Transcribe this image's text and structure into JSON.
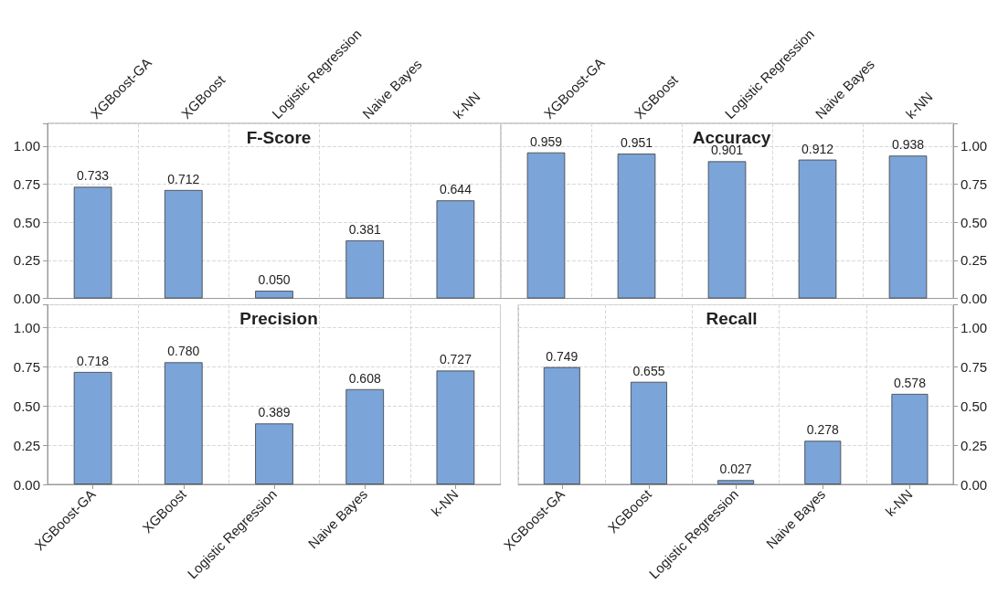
{
  "chart_data": [
    {
      "type": "bar",
      "title": "F-Score",
      "categories": [
        "XGBoost-GA",
        "XGBoost",
        "Logistic Regression",
        "Naive Bayes",
        "k-NN"
      ],
      "values": [
        0.733,
        0.712,
        0.05,
        0.381,
        0.644
      ],
      "value_labels": [
        "0.733",
        "0.712",
        "0.050",
        "0.381",
        "0.644"
      ],
      "color": "#7ba4d9",
      "ylim": [
        0,
        1.15
      ],
      "yticks": [
        {
          "value": 0,
          "label": "0.00"
        },
        {
          "value": 0.25,
          "label": "0.25"
        },
        {
          "value": 0.5,
          "label": "0.50"
        },
        {
          "value": 0.75,
          "label": "0.75"
        },
        {
          "value": 1,
          "label": "1.00"
        }
      ],
      "grid": true
    },
    {
      "type": "bar",
      "title": "Accuracy",
      "categories": [
        "XGBoost-GA",
        "XGBoost",
        "Logistic Regression",
        "Naive Bayes",
        "k-NN"
      ],
      "values": [
        0.959,
        0.951,
        0.901,
        0.912,
        0.938
      ],
      "value_labels": [
        "0.959",
        "0.951",
        "0.901",
        "0.912",
        "0.938"
      ],
      "color": "#7ba4d9",
      "ylim": [
        0,
        1.15
      ],
      "yticks": [
        {
          "value": 0,
          "label": "0.00"
        },
        {
          "value": 0.25,
          "label": "0.25"
        },
        {
          "value": 0.5,
          "label": "0.50"
        },
        {
          "value": 0.75,
          "label": "0.75"
        },
        {
          "value": 1,
          "label": "1.00"
        }
      ],
      "grid": true
    },
    {
      "type": "bar",
      "title": "Precision",
      "categories": [
        "XGBoost-GA",
        "XGBoost",
        "Logistic Regression",
        "Naive Bayes",
        "k-NN"
      ],
      "values": [
        0.718,
        0.78,
        0.389,
        0.608,
        0.727
      ],
      "value_labels": [
        "0.718",
        "0.780",
        "0.389",
        "0.608",
        "0.727"
      ],
      "color": "#7ba4d9",
      "ylim": [
        0,
        1.15
      ],
      "yticks": [
        {
          "value": 0,
          "label": "0.00"
        },
        {
          "value": 0.25,
          "label": "0.25"
        },
        {
          "value": 0.5,
          "label": "0.50"
        },
        {
          "value": 0.75,
          "label": "0.75"
        },
        {
          "value": 1,
          "label": "1.00"
        }
      ],
      "grid": true
    },
    {
      "type": "bar",
      "title": "Recall",
      "categories": [
        "XGBoost-GA",
        "XGBoost",
        "Logistic Regression",
        "Naive Bayes",
        "k-NN"
      ],
      "values": [
        0.749,
        0.655,
        0.027,
        0.278,
        0.578
      ],
      "value_labels": [
        "0.749",
        "0.655",
        "0.027",
        "0.278",
        "0.578"
      ],
      "color": "#7ba4d9",
      "ylim": [
        0,
        1.15
      ],
      "yticks": [
        {
          "value": 0,
          "label": "0.00"
        },
        {
          "value": 0.25,
          "label": "0.25"
        },
        {
          "value": 0.5,
          "label": "0.50"
        },
        {
          "value": 0.75,
          "label": "0.75"
        },
        {
          "value": 1,
          "label": "1.00"
        }
      ],
      "grid": true
    }
  ]
}
